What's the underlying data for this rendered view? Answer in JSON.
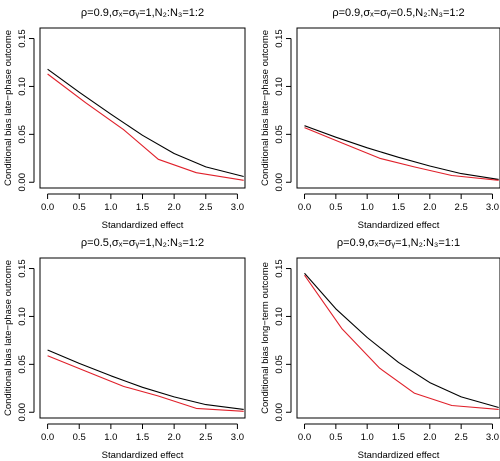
{
  "colors": {
    "black_series": "#000000",
    "red_series": "#e0202a",
    "axis": "#000000"
  },
  "chart_data": [
    {
      "type": "line",
      "title": "ρ=0.9,σₓ=σᵧ=1,N₂:N₃=1:2",
      "xlabel": "Standardized effect",
      "ylabel": "Conditional bias late−phase outcome",
      "xlim": [
        0,
        3.1
      ],
      "ylim": [
        0,
        0.155
      ],
      "xticks": [
        "0.0",
        "0.5",
        "1.0",
        "1.5",
        "2.0",
        "2.5",
        "3.0"
      ],
      "yticks": [
        "0.00",
        "0.05",
        "0.10",
        "0.15"
      ],
      "grid": false,
      "series": [
        {
          "color": "#000000",
          "x": [
            0,
            0.5,
            1.0,
            1.5,
            2.0,
            2.5,
            3.1
          ],
          "y": [
            0.118,
            0.094,
            0.071,
            0.049,
            0.03,
            0.016,
            0.006
          ]
        },
        {
          "color": "#e0202a",
          "x": [
            0,
            0.6,
            1.2,
            1.75,
            2.35,
            3.1
          ],
          "y": [
            0.113,
            0.083,
            0.055,
            0.024,
            0.01,
            0.002
          ]
        }
      ]
    },
    {
      "type": "line",
      "title": "ρ=0.9,σₓ=σᵧ=0.5,N₂:N₃=1:2",
      "xlabel": "Standardized effect",
      "ylabel": "Conditional bias late−phase outcome",
      "xlim": [
        0,
        3.1
      ],
      "ylim": [
        0,
        0.155
      ],
      "xticks": [
        "0.0",
        "0.5",
        "1.0",
        "1.5",
        "2.0",
        "2.5",
        "3.0"
      ],
      "yticks": [
        "0.00",
        "0.05",
        "0.10",
        "0.15"
      ],
      "grid": false,
      "series": [
        {
          "color": "#000000",
          "x": [
            0,
            0.5,
            1.0,
            1.5,
            2.0,
            2.5,
            3.1
          ],
          "y": [
            0.059,
            0.047,
            0.036,
            0.026,
            0.017,
            0.009,
            0.003
          ]
        },
        {
          "color": "#e0202a",
          "x": [
            0,
            0.6,
            1.2,
            1.75,
            2.35,
            3.1
          ],
          "y": [
            0.057,
            0.041,
            0.025,
            0.016,
            0.007,
            0.002
          ]
        }
      ]
    },
    {
      "type": "line",
      "title": "ρ=0.5,σₓ=σᵧ=1,N₂:N₃=1:2",
      "xlabel": "Standardized effect",
      "ylabel": "Conditional bias late−phase outcome",
      "xlim": [
        0,
        3.1
      ],
      "ylim": [
        0,
        0.155
      ],
      "xticks": [
        "0.0",
        "0.5",
        "1.0",
        "1.5",
        "2.0",
        "2.5",
        "3.0"
      ],
      "yticks": [
        "0.00",
        "0.05",
        "0.10",
        "0.15"
      ],
      "grid": false,
      "series": [
        {
          "color": "#000000",
          "x": [
            0,
            0.5,
            1.0,
            1.5,
            2.0,
            2.5,
            3.1
          ],
          "y": [
            0.065,
            0.051,
            0.038,
            0.026,
            0.016,
            0.008,
            0.003
          ]
        },
        {
          "color": "#e0202a",
          "x": [
            0,
            0.6,
            1.2,
            1.75,
            2.35,
            3.1
          ],
          "y": [
            0.059,
            0.043,
            0.027,
            0.017,
            0.004,
            0.001
          ]
        }
      ]
    },
    {
      "type": "line",
      "title": "ρ=0.9,σₓ=σᵧ=1,N₂:N₃=1:1",
      "xlabel": "Standardized effect",
      "ylabel": "Conditional bias long−term outcome",
      "xlim": [
        0,
        3.1
      ],
      "ylim": [
        0,
        0.155
      ],
      "xticks": [
        "0.0",
        "0.5",
        "1.0",
        "1.5",
        "2.0",
        "2.5",
        "3.0"
      ],
      "yticks": [
        "0.00",
        "0.05",
        "0.10",
        "0.15"
      ],
      "grid": false,
      "series": [
        {
          "color": "#000000",
          "x": [
            0,
            0.5,
            1.0,
            1.5,
            2.0,
            2.5,
            3.1
          ],
          "y": [
            0.145,
            0.108,
            0.078,
            0.052,
            0.031,
            0.016,
            0.005
          ]
        },
        {
          "color": "#e0202a",
          "x": [
            0,
            0.6,
            1.2,
            1.75,
            2.35,
            3.1
          ],
          "y": [
            0.143,
            0.087,
            0.046,
            0.02,
            0.007,
            0.003
          ]
        }
      ]
    }
  ]
}
